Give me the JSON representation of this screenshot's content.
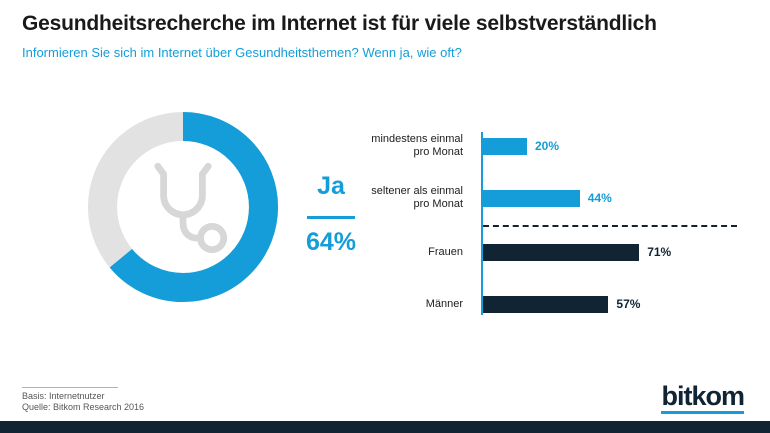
{
  "colors": {
    "accent": "#149dd8",
    "navy": "#112433",
    "ring_gray": "#e2e2e2",
    "icon_gray": "#d7d7d7",
    "title_text": "#1a1a1a",
    "muted_text": "#575757"
  },
  "header": {
    "title": "Gesundheitsrecherche im Internet ist für viele selbstverständlich",
    "subtitle": "Informieren Sie sich im Internet über Gesundheitsthemen? Wenn ja, wie oft?"
  },
  "chart_data": [
    {
      "type": "donut",
      "label": "Ja",
      "value_label": "64%",
      "slices": [
        {
          "label": "Ja",
          "value": 64
        },
        {
          "label": "",
          "value": 36
        }
      ],
      "center_icon": "stethoscope"
    },
    {
      "type": "bar",
      "orientation": "horizontal",
      "unit": "%",
      "categories": [
        "mindestens einmal\npro Monat",
        "seltener als einmal\npro Monat",
        "Frauen",
        "Männer"
      ],
      "values": [
        20,
        44,
        71,
        57
      ],
      "series_colors": [
        "accent",
        "accent",
        "navy",
        "navy"
      ],
      "divider_after_index": 1,
      "xlim": [
        0,
        100
      ],
      "legend": "none",
      "grid": false
    }
  ],
  "footer": {
    "basis": "Basis: Internetnutzer",
    "source": "Quelle: Bitkom Research 2016",
    "logo_text": "bitkom"
  }
}
